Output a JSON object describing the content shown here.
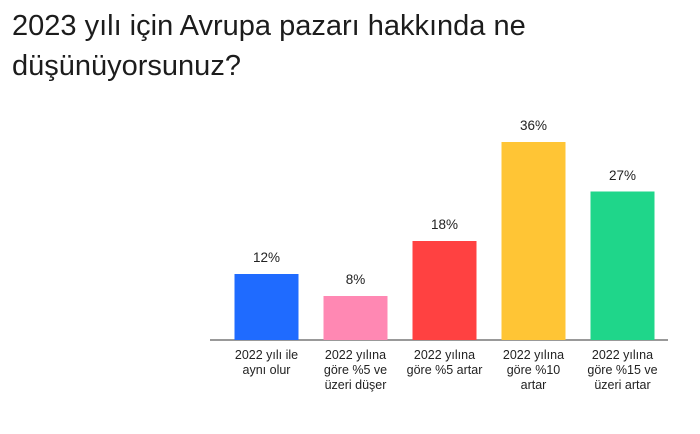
{
  "chart_data": {
    "type": "bar",
    "title": "2023 yılı için Avrupa pazarı hakkında ne düşünüyorsunuz?",
    "categories": [
      "2022 yılı ile aynı olur",
      "2022 yılına göre %5 ve üzeri düşer",
      "2022 yılına göre %5 artar",
      "2022 yılına göre %10 artar",
      "2022 yılına göre %15 ve üzeri artar"
    ],
    "values": [
      12,
      8,
      18,
      36,
      27
    ],
    "value_labels": [
      "12%",
      "8%",
      "18%",
      "36%",
      "27%"
    ],
    "colors": [
      "#1f6bff",
      "#ff88b3",
      "#ff4141",
      "#ffc535",
      "#1fd68a"
    ]
  }
}
